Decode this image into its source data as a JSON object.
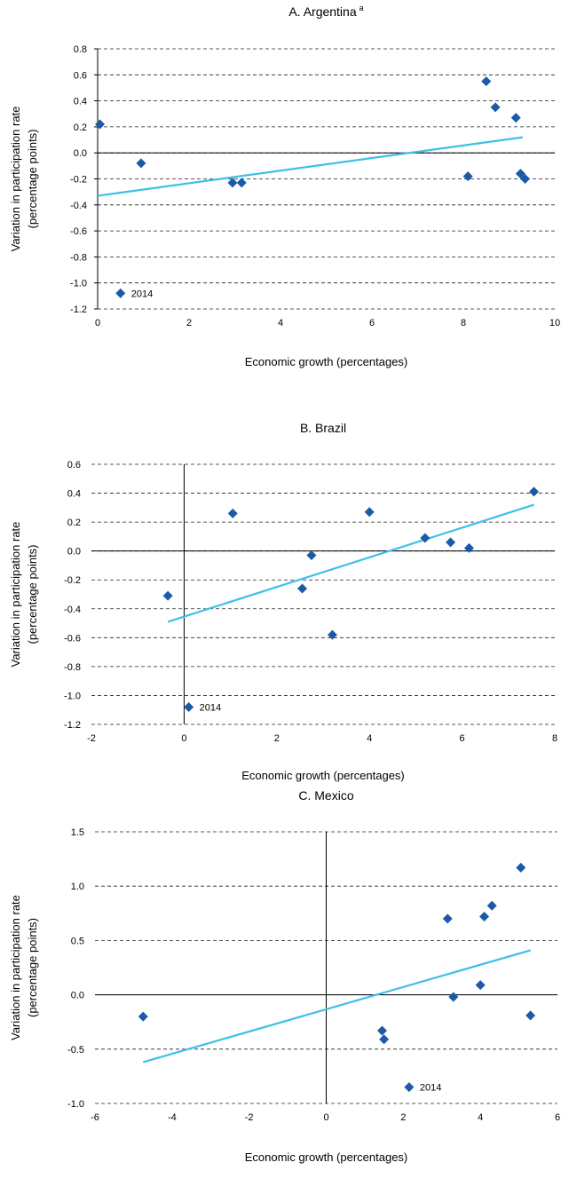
{
  "colors": {
    "points": "#1A5AA6",
    "trend": "#3CC0E6"
  },
  "chart_data": [
    {
      "type": "scatter",
      "title": "A. Argentina",
      "title_sup": "a",
      "xlabel": "Economic growth (percentages)",
      "ylabel": [
        "Variation in participation rate",
        "(percentage points)"
      ],
      "xlim": [
        0,
        10
      ],
      "ylim": [
        -1.2,
        0.8
      ],
      "xticks": [
        0,
        2,
        4,
        6,
        8,
        10
      ],
      "yticks": [
        0.8,
        0.6,
        0.4,
        0.2,
        0.0,
        -0.2,
        -0.4,
        -0.6,
        -0.8,
        -1.0,
        -1.2
      ],
      "xtick_labels": [
        "0",
        "2",
        "4",
        "6",
        "8",
        "10"
      ],
      "ytick_labels": [
        "0.8",
        "0.6",
        "0.4",
        "0.2",
        "0.0",
        "-0.2",
        "-0.4",
        "-0.6",
        "-0.8",
        "-1.0",
        "-1.2"
      ],
      "points": [
        {
          "x": 0.05,
          "y": 0.22
        },
        {
          "x": 0.95,
          "y": -0.08
        },
        {
          "x": 2.95,
          "y": -0.23
        },
        {
          "x": 3.15,
          "y": -0.23
        },
        {
          "x": 8.1,
          "y": -0.18
        },
        {
          "x": 8.5,
          "y": 0.55
        },
        {
          "x": 8.7,
          "y": 0.35
        },
        {
          "x": 9.15,
          "y": 0.27
        },
        {
          "x": 9.25,
          "y": -0.16
        },
        {
          "x": 9.35,
          "y": -0.2
        },
        {
          "x": 0.5,
          "y": -1.08,
          "label": "2014"
        }
      ],
      "trend": [
        {
          "x": 0.0,
          "y": -0.33
        },
        {
          "x": 9.3,
          "y": 0.12
        }
      ],
      "grid": true
    },
    {
      "type": "scatter",
      "title": "B. Brazil",
      "xlabel": "Economic growth (percentages)",
      "ylabel": [
        "Variation in participation rate",
        "(percentage points)"
      ],
      "xlim": [
        -2,
        8
      ],
      "ylim": [
        -1.2,
        0.6
      ],
      "xticks": [
        -2,
        0,
        2,
        4,
        6,
        8
      ],
      "yticks": [
        0.6,
        0.4,
        0.2,
        0.0,
        -0.2,
        -0.4,
        -0.6,
        -0.8,
        -1.0,
        -1.2
      ],
      "xtick_labels": [
        "-2",
        "0",
        "2",
        "4",
        "6",
        "8"
      ],
      "ytick_labels": [
        "0.6",
        "0.4",
        "0.2",
        "0.0",
        "-0.2",
        "-0.4",
        "-0.6",
        "-0.8",
        "-1.0",
        "-1.2"
      ],
      "points": [
        {
          "x": -0.35,
          "y": -0.31
        },
        {
          "x": 1.05,
          "y": 0.26
        },
        {
          "x": 2.55,
          "y": -0.26
        },
        {
          "x": 2.75,
          "y": -0.03
        },
        {
          "x": 3.2,
          "y": -0.58
        },
        {
          "x": 4.0,
          "y": 0.27
        },
        {
          "x": 5.2,
          "y": 0.09
        },
        {
          "x": 5.75,
          "y": 0.06
        },
        {
          "x": 6.15,
          "y": 0.02
        },
        {
          "x": 7.55,
          "y": 0.41
        },
        {
          "x": 0.1,
          "y": -1.08,
          "label": "2014"
        }
      ],
      "trend": [
        {
          "x": -0.35,
          "y": -0.49
        },
        {
          "x": 7.55,
          "y": 0.32
        }
      ],
      "grid": true
    },
    {
      "type": "scatter",
      "title": "C. Mexico",
      "xlabel": "Economic growth (percentages)",
      "ylabel": [
        "Variation in participation rate",
        "(percentage points)"
      ],
      "xlim": [
        -6,
        6
      ],
      "ylim": [
        -1.0,
        1.5
      ],
      "xticks": [
        -6,
        -4,
        -2,
        0,
        2,
        4,
        6
      ],
      "yticks": [
        1.5,
        1.0,
        0.5,
        0.0,
        -0.5,
        -1.0
      ],
      "xtick_labels": [
        "-6",
        "-4",
        "-2",
        "0",
        "2",
        "4",
        "6"
      ],
      "ytick_labels": [
        "1.5",
        "1.0",
        "0.5",
        "0.0",
        "-0.5",
        "-1.0"
      ],
      "points": [
        {
          "x": -4.75,
          "y": -0.2
        },
        {
          "x": 1.45,
          "y": -0.33
        },
        {
          "x": 1.5,
          "y": -0.41
        },
        {
          "x": 3.15,
          "y": 0.7
        },
        {
          "x": 3.3,
          "y": -0.02
        },
        {
          "x": 4.0,
          "y": 0.09
        },
        {
          "x": 4.1,
          "y": 0.72
        },
        {
          "x": 4.3,
          "y": 0.82
        },
        {
          "x": 5.05,
          "y": 1.17
        },
        {
          "x": 5.3,
          "y": -0.19
        },
        {
          "x": 2.15,
          "y": -0.85,
          "label": "2014"
        }
      ],
      "trend": [
        {
          "x": -4.75,
          "y": -0.62
        },
        {
          "x": 5.3,
          "y": 0.41
        }
      ],
      "grid": true
    }
  ]
}
